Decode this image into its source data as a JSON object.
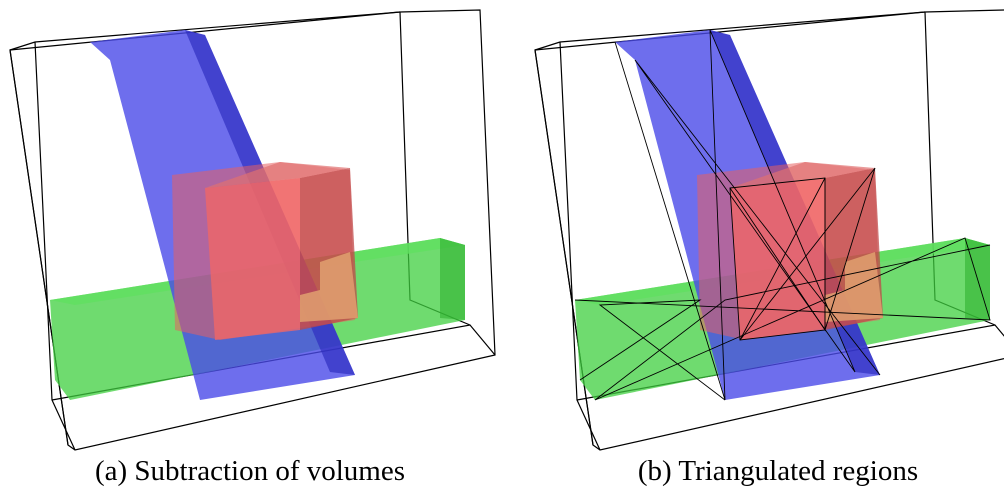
{
  "figure": {
    "panels": [
      {
        "caption": "(a) Subtraction of volumes"
      },
      {
        "caption": "(b) Triangulated regions"
      }
    ]
  }
}
